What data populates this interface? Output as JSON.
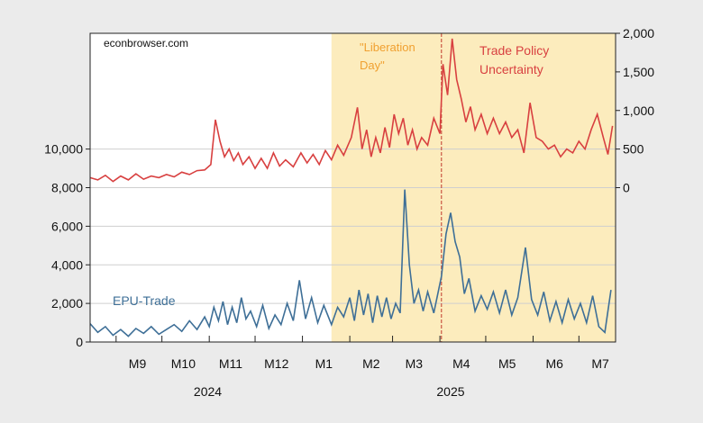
{
  "chart_data": {
    "type": "line",
    "source_text": "econbrowser.com",
    "x_range": [
      "2024-08-15",
      "2025-07-25"
    ],
    "x_ticks": [
      {
        "label": "M9",
        "date": "2024-09-15"
      },
      {
        "label": "M10",
        "date": "2024-10-15"
      },
      {
        "label": "M11",
        "date": "2024-11-15"
      },
      {
        "label": "M12",
        "date": "2024-12-15"
      },
      {
        "label": "M1",
        "date": "2025-01-15"
      },
      {
        "label": "M2",
        "date": "2025-02-15"
      },
      {
        "label": "M3",
        "date": "2025-03-15"
      },
      {
        "label": "M4",
        "date": "2025-04-15"
      },
      {
        "label": "M5",
        "date": "2025-05-15"
      },
      {
        "label": "M6",
        "date": "2025-06-15"
      },
      {
        "label": "M7",
        "date": "2025-07-15"
      }
    ],
    "x_dividers": [
      "2024-09-01",
      "2024-10-01",
      "2024-11-01",
      "2024-12-01",
      "2025-01-01",
      "2025-02-01",
      "2025-03-01",
      "2025-04-01",
      "2025-05-01",
      "2025-06-01",
      "2025-07-01"
    ],
    "year_labels": [
      {
        "label": "2024",
        "date": "2024-10-31"
      },
      {
        "label": "2025",
        "date": "2025-04-08"
      }
    ],
    "y_left": {
      "min": 0,
      "max": 16000,
      "ticks": [
        0,
        2000,
        4000,
        6000,
        8000,
        10000
      ],
      "tick_labels": [
        "0",
        "2,000",
        "4,000",
        "6,000",
        "8,000",
        "10,000"
      ]
    },
    "y_right": {
      "min": -2000,
      "max": 2000,
      "ticks": [
        0,
        500,
        1000,
        1500,
        2000
      ],
      "tick_labels": [
        "0",
        "500",
        "1,000",
        "1,500",
        "2,000"
      ]
    },
    "grid": true,
    "shaded_region": {
      "start": "2025-01-20",
      "end": "2025-07-25",
      "color": "#fcecbd"
    },
    "event_line": {
      "date": "2025-04-02",
      "color": "#c0392b"
    },
    "event_label": {
      "lines": [
        "\"Liberation",
        "Day\""
      ],
      "color": "#f0a030"
    },
    "series": [
      {
        "name": "EPU-Trade",
        "axis": "left",
        "color": "#3e6f97",
        "points": [
          [
            "2024-08-15",
            950
          ],
          [
            "2024-08-20",
            500
          ],
          [
            "2024-08-25",
            800
          ],
          [
            "2024-08-30",
            350
          ],
          [
            "2024-09-04",
            650
          ],
          [
            "2024-09-09",
            300
          ],
          [
            "2024-09-14",
            700
          ],
          [
            "2024-09-19",
            450
          ],
          [
            "2024-09-24",
            800
          ],
          [
            "2024-09-29",
            400
          ],
          [
            "2024-10-04",
            650
          ],
          [
            "2024-10-09",
            900
          ],
          [
            "2024-10-14",
            550
          ],
          [
            "2024-10-19",
            1100
          ],
          [
            "2024-10-24",
            650
          ],
          [
            "2024-10-29",
            1300
          ],
          [
            "2024-11-01",
            800
          ],
          [
            "2024-11-04",
            1800
          ],
          [
            "2024-11-07",
            1100
          ],
          [
            "2024-11-10",
            2100
          ],
          [
            "2024-11-13",
            900
          ],
          [
            "2024-11-16",
            1800
          ],
          [
            "2024-11-19",
            1000
          ],
          [
            "2024-11-22",
            2300
          ],
          [
            "2024-11-25",
            1200
          ],
          [
            "2024-11-28",
            1600
          ],
          [
            "2024-12-02",
            800
          ],
          [
            "2024-12-06",
            1900
          ],
          [
            "2024-12-10",
            700
          ],
          [
            "2024-12-14",
            1400
          ],
          [
            "2024-12-18",
            900
          ],
          [
            "2024-12-22",
            2000
          ],
          [
            "2024-12-26",
            1100
          ],
          [
            "2024-12-30",
            3200
          ],
          [
            "2025-01-03",
            1200
          ],
          [
            "2025-01-07",
            2300
          ],
          [
            "2025-01-11",
            1000
          ],
          [
            "2025-01-15",
            1900
          ],
          [
            "2025-01-20",
            900
          ],
          [
            "2025-01-24",
            1800
          ],
          [
            "2025-01-28",
            1300
          ],
          [
            "2025-02-01",
            2300
          ],
          [
            "2025-02-04",
            1100
          ],
          [
            "2025-02-07",
            2700
          ],
          [
            "2025-02-10",
            1400
          ],
          [
            "2025-02-13",
            2500
          ],
          [
            "2025-02-16",
            1000
          ],
          [
            "2025-02-19",
            2400
          ],
          [
            "2025-02-22",
            1300
          ],
          [
            "2025-02-25",
            2300
          ],
          [
            "2025-02-28",
            1200
          ],
          [
            "2025-03-03",
            2000
          ],
          [
            "2025-03-06",
            1500
          ],
          [
            "2025-03-09",
            7900
          ],
          [
            "2025-03-12",
            4000
          ],
          [
            "2025-03-15",
            2000
          ],
          [
            "2025-03-18",
            2700
          ],
          [
            "2025-03-21",
            1600
          ],
          [
            "2025-03-24",
            2600
          ],
          [
            "2025-03-28",
            1500
          ],
          [
            "2025-04-02",
            3400
          ],
          [
            "2025-04-05",
            5600
          ],
          [
            "2025-04-08",
            6700
          ],
          [
            "2025-04-11",
            5200
          ],
          [
            "2025-04-14",
            4400
          ],
          [
            "2025-04-17",
            2500
          ],
          [
            "2025-04-20",
            3300
          ],
          [
            "2025-04-24",
            1600
          ],
          [
            "2025-04-28",
            2400
          ],
          [
            "2025-05-02",
            1700
          ],
          [
            "2025-05-06",
            2600
          ],
          [
            "2025-05-10",
            1500
          ],
          [
            "2025-05-14",
            2700
          ],
          [
            "2025-05-18",
            1400
          ],
          [
            "2025-05-22",
            2300
          ],
          [
            "2025-05-27",
            4900
          ],
          [
            "2025-05-31",
            2200
          ],
          [
            "2025-06-04",
            1400
          ],
          [
            "2025-06-08",
            2600
          ],
          [
            "2025-06-12",
            1100
          ],
          [
            "2025-06-16",
            2100
          ],
          [
            "2025-06-20",
            1000
          ],
          [
            "2025-06-24",
            2200
          ],
          [
            "2025-06-28",
            1200
          ],
          [
            "2025-07-02",
            2000
          ],
          [
            "2025-07-06",
            1000
          ],
          [
            "2025-07-10",
            2400
          ],
          [
            "2025-07-14",
            800
          ],
          [
            "2025-07-18",
            500
          ],
          [
            "2025-07-22",
            2700
          ]
        ]
      },
      {
        "name": "Trade Policy Uncertainty",
        "axis": "right",
        "color": "#d84040",
        "points": [
          [
            "2024-08-15",
            130
          ],
          [
            "2024-08-20",
            100
          ],
          [
            "2024-08-25",
            160
          ],
          [
            "2024-08-30",
            80
          ],
          [
            "2024-09-04",
            150
          ],
          [
            "2024-09-09",
            100
          ],
          [
            "2024-09-14",
            180
          ],
          [
            "2024-09-19",
            110
          ],
          [
            "2024-09-24",
            150
          ],
          [
            "2024-09-29",
            130
          ],
          [
            "2024-10-04",
            170
          ],
          [
            "2024-10-09",
            140
          ],
          [
            "2024-10-14",
            200
          ],
          [
            "2024-10-19",
            170
          ],
          [
            "2024-10-24",
            220
          ],
          [
            "2024-10-29",
            230
          ],
          [
            "2024-11-02",
            300
          ],
          [
            "2024-11-05",
            880
          ],
          [
            "2024-11-08",
            600
          ],
          [
            "2024-11-11",
            400
          ],
          [
            "2024-11-14",
            500
          ],
          [
            "2024-11-17",
            350
          ],
          [
            "2024-11-20",
            450
          ],
          [
            "2024-11-23",
            300
          ],
          [
            "2024-11-27",
            400
          ],
          [
            "2024-12-01",
            250
          ],
          [
            "2024-12-05",
            380
          ],
          [
            "2024-12-09",
            250
          ],
          [
            "2024-12-13",
            450
          ],
          [
            "2024-12-17",
            280
          ],
          [
            "2024-12-21",
            360
          ],
          [
            "2024-12-26",
            270
          ],
          [
            "2024-12-31",
            450
          ],
          [
            "2025-01-04",
            320
          ],
          [
            "2025-01-08",
            430
          ],
          [
            "2025-01-12",
            300
          ],
          [
            "2025-01-16",
            480
          ],
          [
            "2025-01-20",
            360
          ],
          [
            "2025-01-24",
            550
          ],
          [
            "2025-01-28",
            420
          ],
          [
            "2025-02-02",
            650
          ],
          [
            "2025-02-06",
            1040
          ],
          [
            "2025-02-09",
            500
          ],
          [
            "2025-02-12",
            750
          ],
          [
            "2025-02-15",
            400
          ],
          [
            "2025-02-18",
            650
          ],
          [
            "2025-02-21",
            450
          ],
          [
            "2025-02-24",
            780
          ],
          [
            "2025-02-27",
            520
          ],
          [
            "2025-03-02",
            950
          ],
          [
            "2025-03-05",
            700
          ],
          [
            "2025-03-08",
            900
          ],
          [
            "2025-03-11",
            550
          ],
          [
            "2025-03-14",
            750
          ],
          [
            "2025-03-17",
            500
          ],
          [
            "2025-03-20",
            650
          ],
          [
            "2025-03-24",
            550
          ],
          [
            "2025-03-28",
            900
          ],
          [
            "2025-04-01",
            700
          ],
          [
            "2025-04-03",
            1600
          ],
          [
            "2025-04-06",
            1200
          ],
          [
            "2025-04-09",
            1930
          ],
          [
            "2025-04-12",
            1400
          ],
          [
            "2025-04-15",
            1150
          ],
          [
            "2025-04-18",
            850
          ],
          [
            "2025-04-21",
            1050
          ],
          [
            "2025-04-24",
            750
          ],
          [
            "2025-04-28",
            950
          ],
          [
            "2025-05-02",
            700
          ],
          [
            "2025-05-06",
            900
          ],
          [
            "2025-05-10",
            700
          ],
          [
            "2025-05-14",
            850
          ],
          [
            "2025-05-18",
            650
          ],
          [
            "2025-05-22",
            750
          ],
          [
            "2025-05-26",
            450
          ],
          [
            "2025-05-30",
            1100
          ],
          [
            "2025-06-03",
            650
          ],
          [
            "2025-06-07",
            600
          ],
          [
            "2025-06-11",
            500
          ],
          [
            "2025-06-15",
            550
          ],
          [
            "2025-06-19",
            400
          ],
          [
            "2025-06-23",
            500
          ],
          [
            "2025-06-27",
            450
          ],
          [
            "2025-07-01",
            600
          ],
          [
            "2025-07-05",
            500
          ],
          [
            "2025-07-09",
            750
          ],
          [
            "2025-07-13",
            950
          ],
          [
            "2025-07-17",
            650
          ],
          [
            "2025-07-20",
            430
          ],
          [
            "2025-07-23",
            800
          ]
        ]
      }
    ],
    "annotations": [
      {
        "text": "EPU-Trade",
        "color": "#3e6f97"
      },
      {
        "lines": [
          "Trade Policy",
          "Uncertainty"
        ],
        "color": "#d84040"
      }
    ]
  }
}
